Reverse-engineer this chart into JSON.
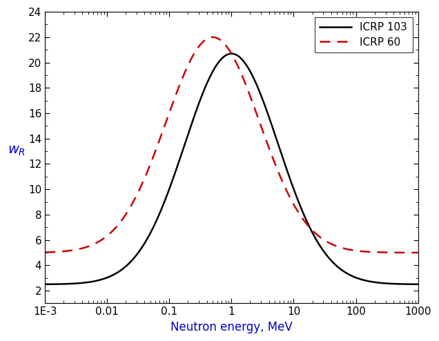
{
  "title": "",
  "xlabel": "Neutron energy, MeV",
  "ylabel": "w_R",
  "xlim": [
    0.001,
    1000
  ],
  "ylim": [
    1,
    24
  ],
  "yticks": [
    2,
    4,
    6,
    8,
    10,
    12,
    14,
    16,
    18,
    20,
    22,
    24
  ],
  "ytick_labels": [
    "2",
    "4",
    "6",
    "8",
    "10",
    "12",
    "14",
    "16",
    "18",
    "20",
    "22",
    "24"
  ],
  "xtick_values": [
    0.001,
    0.01,
    0.1,
    1,
    10,
    100,
    1000
  ],
  "xtick_labels": [
    "1E-3",
    "0.01",
    "0.1",
    "1",
    "10",
    "100",
    "1000"
  ],
  "legend_labels": [
    "ICRP 103",
    "ICRP 60"
  ],
  "line_color_103": "#000000",
  "line_color_60": "#cc0000",
  "tick_label_color": "#cc6600",
  "axis_label_color": "#0000cc",
  "background_color": "#ffffff",
  "line_width": 1.8,
  "legend_fontsize": 11,
  "axis_label_fontsize": 12,
  "tick_label_fontsize": 11
}
